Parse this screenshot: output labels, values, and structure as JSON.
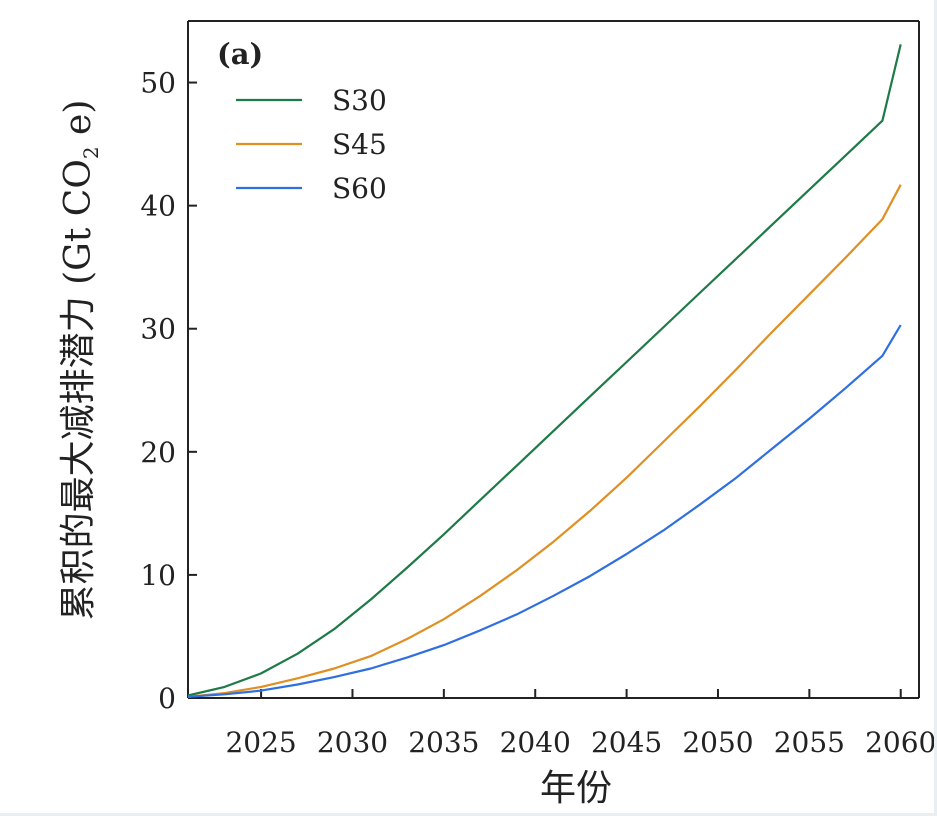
{
  "chart_data": {
    "type": "line",
    "panel_label": "(a)",
    "xlabel": "年份",
    "ylabel_main": "累积的最大减排潜力 (Gt CO",
    "ylabel_sub": "2",
    "ylabel_end": " e)",
    "xlim": [
      2021,
      2061
    ],
    "ylim": [
      0,
      55
    ],
    "xticks": [
      2025,
      2030,
      2035,
      2040,
      2045,
      2050,
      2055,
      2060
    ],
    "yticks": [
      0,
      10,
      20,
      30,
      40,
      50
    ],
    "legend_position": "top-left",
    "grid": false,
    "x": [
      2021,
      2023,
      2025,
      2027,
      2029,
      2031,
      2033,
      2035,
      2037,
      2039,
      2041,
      2043,
      2045,
      2047,
      2049,
      2051,
      2053,
      2055,
      2057,
      2059,
      2060
    ],
    "series": [
      {
        "name": "S30",
        "color": "#1e7a46",
        "values": [
          0.2,
          0.9,
          2.0,
          3.6,
          5.6,
          8.0,
          10.6,
          13.3,
          16.1,
          18.9,
          21.7,
          24.5,
          27.3,
          30.1,
          32.9,
          35.7,
          38.5,
          41.3,
          44.1,
          46.9,
          53.1
        ]
      },
      {
        "name": "S45",
        "color": "#e08f22",
        "values": [
          0.1,
          0.4,
          0.9,
          1.6,
          2.4,
          3.4,
          4.8,
          6.4,
          8.3,
          10.4,
          12.7,
          15.2,
          17.9,
          20.8,
          23.7,
          26.7,
          29.8,
          32.8,
          35.8,
          38.9,
          41.7
        ]
      },
      {
        "name": "S60",
        "color": "#2f6fe0",
        "values": [
          0.1,
          0.3,
          0.6,
          1.1,
          1.7,
          2.4,
          3.3,
          4.3,
          5.5,
          6.8,
          8.3,
          9.9,
          11.7,
          13.6,
          15.7,
          17.9,
          20.3,
          22.7,
          25.2,
          27.8,
          30.3
        ]
      }
    ]
  }
}
